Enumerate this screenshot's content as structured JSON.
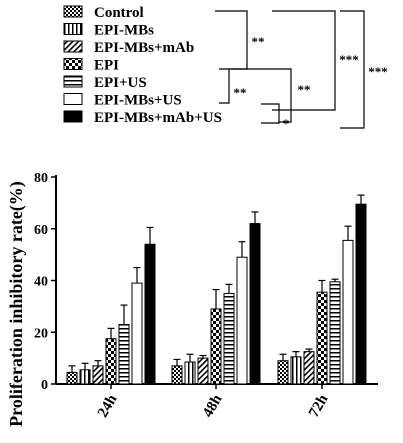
{
  "chart_data": {
    "type": "bar",
    "title": "",
    "xlabel": "",
    "ylabel": "Proliferation inhibitory rate(%)",
    "categories": [
      "24h",
      "48h",
      "72h"
    ],
    "ylim": [
      0,
      80
    ],
    "yticks": [
      "0",
      "20",
      "40",
      "60",
      "80"
    ],
    "grid": false,
    "legend_position": "top-left",
    "series": [
      {
        "name": "Control",
        "pattern": "checker-small",
        "values": [
          4.5,
          7,
          9
        ],
        "errors": [
          2.5,
          2.5,
          2.5
        ]
      },
      {
        "name": "EPI-MBs",
        "pattern": "vertical-stripes",
        "values": [
          5.5,
          8.5,
          10.5
        ],
        "errors": [
          2.5,
          3,
          2
        ]
      },
      {
        "name": "EPI-MBs+mAb",
        "pattern": "diagonal-stripes",
        "values": [
          7,
          10,
          12.5
        ],
        "errors": [
          2,
          1,
          1
        ]
      },
      {
        "name": "EPI",
        "pattern": "checker-large",
        "values": [
          17.5,
          29,
          35.5
        ],
        "errors": [
          4,
          7.5,
          4.5
        ]
      },
      {
        "name": "EPI+US",
        "pattern": "horizontal-stripes",
        "values": [
          23,
          35,
          39.5
        ],
        "errors": [
          7.5,
          3.5,
          1
        ]
      },
      {
        "name": "EPI-MBs+US",
        "pattern": "white",
        "values": [
          39,
          49,
          55.5
        ],
        "errors": [
          6,
          6,
          5.5
        ]
      },
      {
        "name": "EPI-MBs+mAb+US",
        "pattern": "black",
        "values": [
          54,
          62,
          69.5
        ],
        "errors": [
          6.5,
          4.5,
          3.5
        ]
      }
    ],
    "significance": [
      "**",
      "**",
      "***",
      "***",
      "**",
      "*"
    ]
  }
}
